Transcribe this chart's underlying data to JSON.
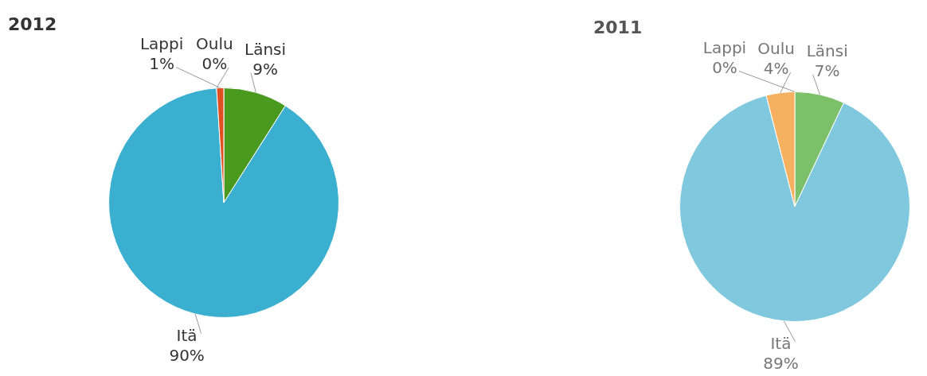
{
  "chart_data": [
    {
      "type": "pie",
      "title": "2012",
      "categories": [
        "Länsi",
        "Itä",
        "Oulu",
        "Lappi"
      ],
      "values": [
        9,
        90,
        0,
        1
      ],
      "colors": [
        "#4a9a1f",
        "#3bafd0",
        "#f0a050",
        "#e05020"
      ],
      "value_labels": [
        "9%",
        "90%",
        "0%",
        "1%"
      ]
    },
    {
      "type": "pie",
      "title": "2011",
      "categories": [
        "Länsi",
        "Itä",
        "Oulu",
        "Lappi"
      ],
      "values": [
        7,
        89,
        4,
        0
      ],
      "colors": [
        "#7dc06a",
        "#80c8de",
        "#f5b060",
        "#e07050"
      ],
      "value_labels": [
        "7%",
        "89%",
        "4%",
        "0%"
      ]
    }
  ]
}
